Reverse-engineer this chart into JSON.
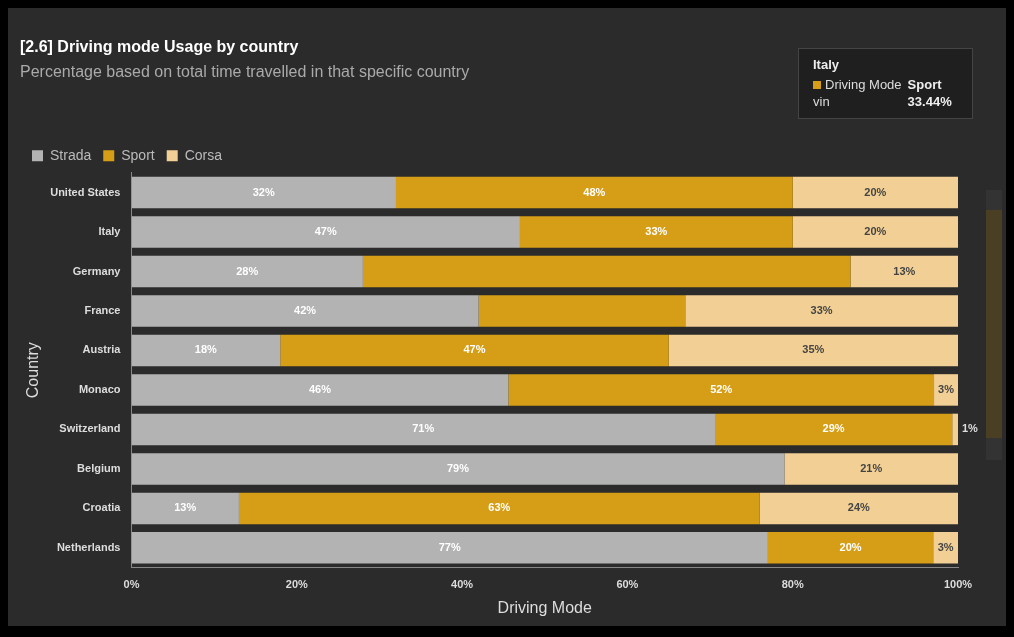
{
  "chart_data": {
    "type": "bar",
    "orientation": "horizontal",
    "stacked": true,
    "title": "[2.6] Driving mode Usage by country",
    "subtitle": "Percentage based on total time travelled in that specific country",
    "xlabel": "Driving Mode",
    "ylabel": "Country",
    "categories": [
      "United States",
      "Italy",
      "Germany",
      "France",
      "Austria",
      "Monaco",
      "Switzerland",
      "Belgium",
      "Croatia",
      "Netherlands"
    ],
    "series": [
      {
        "name": "Strada",
        "color": "#b3b3b3",
        "values": [
          32,
          47,
          28,
          42,
          18,
          45.6,
          70.6,
          79,
          13,
          77
        ],
        "value_labels": [
          "32%",
          "47%",
          "28%",
          "42%",
          "18%",
          "46%",
          "71%",
          "79%",
          "13%",
          "77%"
        ]
      },
      {
        "name": "Sport",
        "color": "#d69e17",
        "values": [
          48,
          33,
          59,
          25,
          47,
          51.5,
          28.7,
          0,
          63,
          20
        ],
        "value_labels": [
          "48%",
          "33%",
          null,
          null,
          "47%",
          "52%",
          "29%",
          null,
          "63%",
          "20%"
        ]
      },
      {
        "name": "Corsa",
        "color": "#f2cf94",
        "values": [
          20,
          20,
          13,
          33,
          35,
          2.9,
          0.7,
          21,
          24,
          3
        ],
        "value_labels": [
          "20%",
          "20%",
          "13%",
          "33%",
          "35%",
          "3%",
          "1%",
          "21%",
          "24%",
          "3%"
        ]
      }
    ],
    "xlim": [
      0,
      100
    ],
    "xticks": [
      {
        "value": 0,
        "label": "0%"
      },
      {
        "value": 20,
        "label": "20%"
      },
      {
        "value": 40,
        "label": "40%"
      },
      {
        "value": 60,
        "label": "60%"
      },
      {
        "value": 80,
        "label": "80%"
      },
      {
        "value": 100,
        "label": "100%"
      }
    ],
    "grid": false,
    "legend": "top left",
    "annotations": [
      "Italy",
      "Driving Mode",
      "Sport",
      "vin",
      "33.44%"
    ]
  }
}
